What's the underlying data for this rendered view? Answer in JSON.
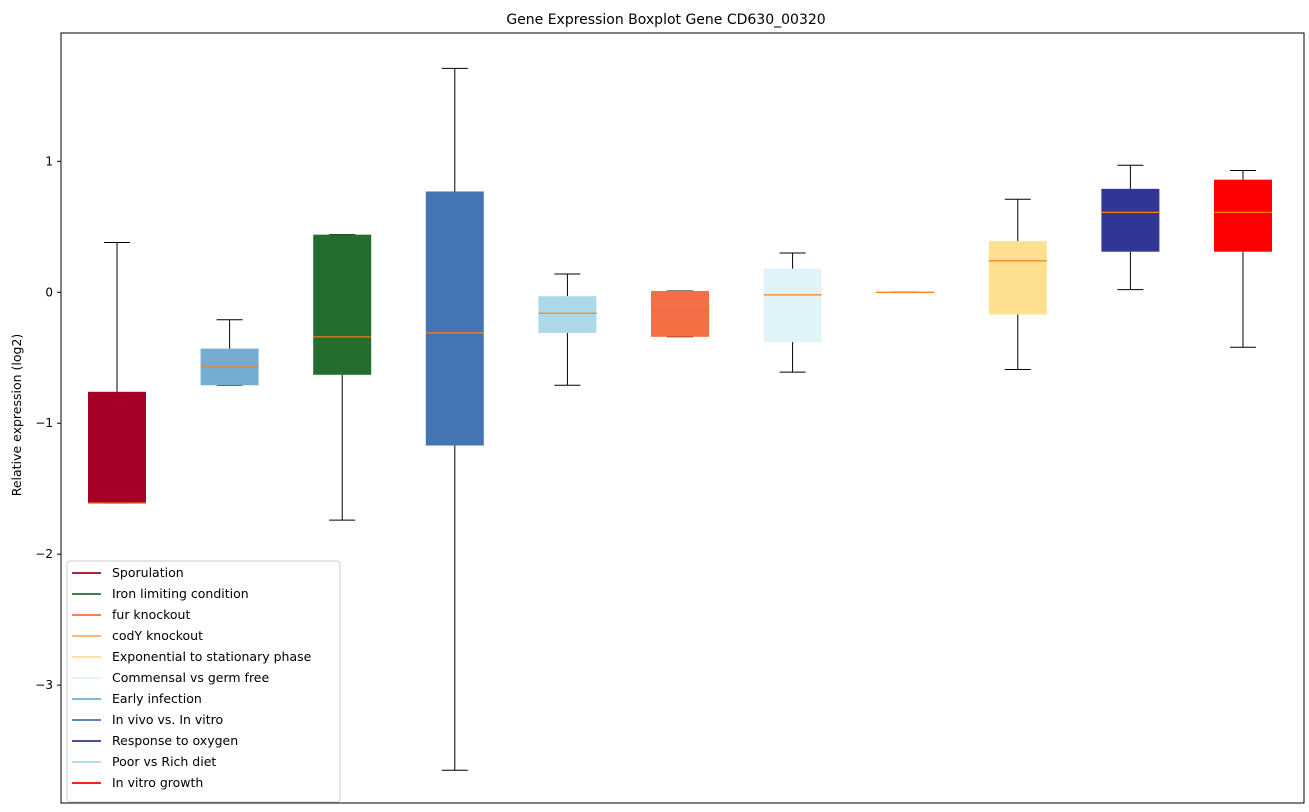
{
  "chart_data": {
    "type": "boxplot",
    "title": "Gene Expression Boxplot Gene CD630_00320",
    "xlabel": "",
    "ylabel": "Relative expression (log2)",
    "ylim": [
      -3.9,
      1.98
    ],
    "yticks": [
      1,
      0,
      -1,
      -2,
      -3
    ],
    "ytick_labels": [
      "1",
      "0",
      "−1",
      "−2",
      "−3"
    ],
    "median_color": "#ff7f0e",
    "boxes": [
      {
        "name": "Sporulation",
        "color": "#a50026",
        "whisker_low": -1.61,
        "q1": -1.61,
        "median": -1.61,
        "q3": -0.76,
        "whisker_high": 0.38
      },
      {
        "name": "Early infection",
        "color": "#74add1",
        "whisker_low": -0.71,
        "q1": -0.71,
        "median": -0.57,
        "q3": -0.43,
        "whisker_high": -0.21
      },
      {
        "name": "Iron limiting condition",
        "color": "#236e2e",
        "whisker_low": -1.74,
        "q1": -0.63,
        "median": -0.34,
        "q3": 0.44,
        "whisker_high": 0.44
      },
      {
        "name": "In vivo vs. In vitro",
        "color": "#4575b4",
        "whisker_low": -3.65,
        "q1": -1.17,
        "median": -0.31,
        "q3": 0.77,
        "whisker_high": 1.71
      },
      {
        "name": "Poor vs Rich diet",
        "color": "#abd9e9",
        "whisker_low": -0.71,
        "q1": -0.31,
        "median": -0.16,
        "q3": -0.03,
        "whisker_high": 0.14
      },
      {
        "name": "fur knockout",
        "color": "#f46d43",
        "whisker_low": -0.34,
        "q1": -0.34,
        "median": -0.1,
        "q3": 0.01,
        "whisker_high": 0.01
      },
      {
        "name": "Commensal vs germ free",
        "color": "#e0f3f8",
        "whisker_low": -0.61,
        "q1": -0.38,
        "median": -0.02,
        "q3": 0.18,
        "whisker_high": 0.3
      },
      {
        "name": "codY knockout",
        "color": "#fdae61",
        "whisker_low": 0.0,
        "q1": 0.0,
        "median": 0.0,
        "q3": 0.0,
        "whisker_high": 0.0
      },
      {
        "name": "Exponential to stationary phase",
        "color": "#fee090",
        "whisker_low": -0.59,
        "q1": -0.17,
        "median": 0.24,
        "q3": 0.39,
        "whisker_high": 0.71
      },
      {
        "name": "Response to oxygen",
        "color": "#313695",
        "whisker_low": 0.02,
        "q1": 0.31,
        "median": 0.61,
        "q3": 0.79,
        "whisker_high": 0.97
      },
      {
        "name": "In vitro growth",
        "color": "#ff0000",
        "whisker_low": -0.42,
        "q1": 0.31,
        "median": 0.61,
        "q3": 0.86,
        "whisker_high": 0.93
      }
    ],
    "legend": {
      "placement": "lower-left",
      "entries": [
        {
          "label": "Sporulation",
          "color": "#a50026"
        },
        {
          "label": "Iron limiting condition",
          "color": "#236e2e"
        },
        {
          "label": "fur knockout",
          "color": "#f46d43"
        },
        {
          "label": "codY knockout",
          "color": "#fdae61"
        },
        {
          "label": "Exponential to stationary phase",
          "color": "#fee090"
        },
        {
          "label": "Commensal vs germ free",
          "color": "#e0f3f8"
        },
        {
          "label": "Early infection",
          "color": "#74add1"
        },
        {
          "label": "In vivo vs. In vitro",
          "color": "#4575b4"
        },
        {
          "label": "Response to oxygen",
          "color": "#313695"
        },
        {
          "label": "Poor vs Rich diet",
          "color": "#abd9e9"
        },
        {
          "label": "In vitro growth",
          "color": "#ff0000"
        }
      ]
    }
  }
}
